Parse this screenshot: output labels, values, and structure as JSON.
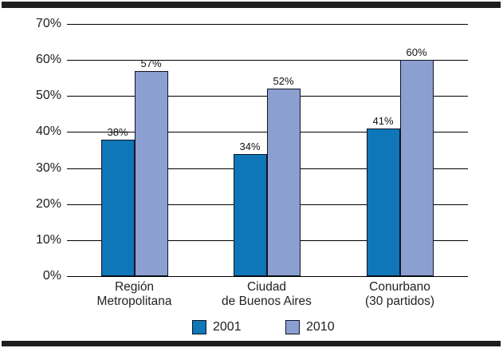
{
  "figure": {
    "background": "#ffffff",
    "rule_color": "#1e1e1e",
    "grid_color": "#000000",
    "bar_border_color": "#101426"
  },
  "chart_data": {
    "type": "bar",
    "title": "",
    "xlabel": "",
    "ylabel": "",
    "ylim": [
      0,
      70
    ],
    "grid": true,
    "legend_position": "bottom",
    "y_ticks": [
      "70%",
      "60%",
      "50%",
      "40%",
      "30%",
      "20%",
      "10%",
      "0%"
    ],
    "y_tick_values": [
      70,
      60,
      50,
      40,
      30,
      20,
      10,
      0
    ],
    "categories": [
      "Región\nMetropolitana",
      "Ciudad\nde Buenos Aires",
      "Conurbano\n(30 partidos)"
    ],
    "series": [
      {
        "name": "2001",
        "color": "#0F76B8",
        "values": [
          38,
          34,
          41
        ],
        "labels": [
          "38%",
          "34%",
          "41%"
        ]
      },
      {
        "name": "2010",
        "color": "#8C9FD1",
        "values": [
          57,
          52,
          60
        ],
        "labels": [
          "57%",
          "52%",
          "60%"
        ]
      }
    ]
  }
}
